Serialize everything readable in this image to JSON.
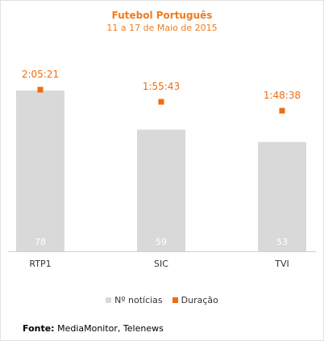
{
  "chart_data": {
    "type": "bar",
    "title": "Futebol Português",
    "subtitle": "11 a 17 de Maio de 2015",
    "categories": [
      "RTP1",
      "SIC",
      "TVI"
    ],
    "series": [
      {
        "name": "Nº notícias",
        "values": [
          78,
          59,
          53
        ],
        "color": "#d9d9d9",
        "labels": [
          "78",
          "59",
          "53"
        ]
      },
      {
        "name": "Duração",
        "values": [
          "2:05:21",
          "1:55:43",
          "1:48:38"
        ],
        "seconds": [
          7521,
          6943,
          6518
        ],
        "color": "#f26c0d",
        "labels": [
          "2:05:21",
          "1:55:43",
          "1:48:38"
        ]
      }
    ],
    "legend": "bottom",
    "grid": false
  },
  "source": {
    "label": "Fonte:",
    "text": " MediaMonitor, Telenews"
  }
}
